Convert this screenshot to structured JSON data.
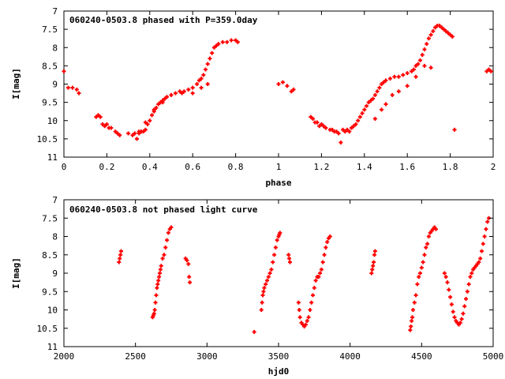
{
  "chart_data": [
    {
      "type": "scatter",
      "title": "060240-0503.8 phased with P=359.0day",
      "xlabel": "phase",
      "ylabel": "I[mag]",
      "xlim": [
        0,
        2
      ],
      "ylim": [
        11,
        7
      ],
      "y_inverted": true,
      "xticks": [
        "0",
        "0.2",
        "0.4",
        "0.6",
        "0.8",
        "1",
        "1.2",
        "1.4",
        "1.6",
        "1.8",
        "2"
      ],
      "yticks": [
        "7",
        "7.5",
        "8",
        "8.5",
        "9",
        "9.5",
        "10",
        "10.5",
        "11"
      ],
      "grid": false,
      "marker_color": "#ff0000",
      "series": [
        {
          "x": [
            0.0,
            0.02,
            0.04,
            0.06,
            0.07,
            0.15,
            0.16,
            0.17,
            0.18,
            0.19,
            0.2,
            0.21,
            0.22,
            0.24,
            0.25,
            0.26,
            0.3,
            0.32,
            0.33,
            0.34,
            0.35,
            0.36,
            0.37,
            0.38,
            0.39,
            0.4,
            0.41,
            0.42,
            0.43,
            0.44,
            0.45,
            0.46,
            0.47,
            0.48,
            0.5,
            0.52,
            0.54,
            0.56,
            0.58,
            0.6,
            0.62,
            0.63,
            0.64,
            0.65,
            0.66,
            0.67,
            0.68,
            0.69,
            0.7,
            0.71,
            0.72,
            0.74,
            0.76,
            0.78,
            0.8,
            0.81,
            0.35,
            0.38,
            0.42,
            0.46,
            0.5,
            0.55,
            0.6,
            0.64,
            0.67,
            1.0,
            1.02,
            1.04,
            1.06,
            1.07,
            1.15,
            1.16,
            1.17,
            1.18,
            1.19,
            1.2,
            1.21,
            1.22,
            1.24,
            1.25,
            1.26,
            1.27,
            1.28,
            1.29,
            1.3,
            1.31,
            1.32,
            1.33,
            1.34,
            1.35,
            1.36,
            1.37,
            1.38,
            1.39,
            1.4,
            1.41,
            1.42,
            1.43,
            1.44,
            1.45,
            1.46,
            1.47,
            1.48,
            1.49,
            1.5,
            1.52,
            1.54,
            1.56,
            1.58,
            1.6,
            1.62,
            1.63,
            1.64,
            1.65,
            1.66,
            1.67,
            1.68,
            1.69,
            1.7,
            1.71,
            1.72,
            1.73,
            1.74,
            1.75,
            1.76,
            1.77,
            1.78,
            1.79,
            1.8,
            1.81,
            1.82,
            1.45,
            1.48,
            1.5,
            1.53,
            1.56,
            1.6,
            1.64,
            1.68,
            1.71,
            1.97,
            1.98,
            1.99
          ],
          "y": [
            8.65,
            9.1,
            9.1,
            9.15,
            9.25,
            9.9,
            9.85,
            9.9,
            10.1,
            10.15,
            10.1,
            10.2,
            10.2,
            10.3,
            10.35,
            10.4,
            10.35,
            10.4,
            10.35,
            10.5,
            10.3,
            10.3,
            10.3,
            10.25,
            10.1,
            10.0,
            9.85,
            9.75,
            9.65,
            9.55,
            9.5,
            9.45,
            9.4,
            9.35,
            9.3,
            9.25,
            9.2,
            9.2,
            9.15,
            9.1,
            9.0,
            8.9,
            8.85,
            8.75,
            8.6,
            8.45,
            8.3,
            8.15,
            8.0,
            7.95,
            7.9,
            7.85,
            7.85,
            7.8,
            7.8,
            7.85,
            10.35,
            10.05,
            9.7,
            9.5,
            9.3,
            9.25,
            9.25,
            9.1,
            9.0,
            9.0,
            8.95,
            9.05,
            9.2,
            9.15,
            9.9,
            9.95,
            10.05,
            10.05,
            10.15,
            10.1,
            10.15,
            10.2,
            10.25,
            10.25,
            10.3,
            10.3,
            10.35,
            10.6,
            10.25,
            10.3,
            10.25,
            10.3,
            10.2,
            10.15,
            10.1,
            10.0,
            9.9,
            9.8,
            9.7,
            9.6,
            9.5,
            9.45,
            9.4,
            9.3,
            9.2,
            9.1,
            9.0,
            8.95,
            8.9,
            8.85,
            8.8,
            8.8,
            8.75,
            8.7,
            8.65,
            8.6,
            8.5,
            8.45,
            8.35,
            8.2,
            8.05,
            7.9,
            7.75,
            7.65,
            7.55,
            7.45,
            7.4,
            7.4,
            7.45,
            7.5,
            7.55,
            7.6,
            7.65,
            7.7,
            10.25,
            9.95,
            9.7,
            9.55,
            9.3,
            9.2,
            9.05,
            8.8,
            8.5,
            8.55,
            8.65,
            8.6,
            8.65
          ]
        }
      ]
    },
    {
      "type": "scatter",
      "title": "060240-0503.8 not phased light curve",
      "xlabel": "hjd0",
      "ylabel": "I[mag]",
      "xlim": [
        2000,
        5000
      ],
      "ylim": [
        11,
        7
      ],
      "y_inverted": true,
      "xticks": [
        "2000",
        "2500",
        "3000",
        "3500",
        "4000",
        "4500",
        "5000"
      ],
      "yticks": [
        "7",
        "7.5",
        "8",
        "8.5",
        "9",
        "9.5",
        "10",
        "10.5",
        "11"
      ],
      "grid": false,
      "marker_color": "#ff0000",
      "series": [
        {
          "x": [
            2385,
            2390,
            2395,
            2400,
            2620,
            2625,
            2630,
            2635,
            2640,
            2645,
            2650,
            2655,
            2660,
            2665,
            2670,
            2675,
            2680,
            2690,
            2700,
            2710,
            2720,
            2730,
            2740,
            2750,
            2850,
            2860,
            2870,
            2875,
            2880,
            3330,
            3380,
            3385,
            3390,
            3395,
            3400,
            3410,
            3420,
            3430,
            3440,
            3450,
            3460,
            3470,
            3480,
            3490,
            3500,
            3505,
            3510,
            3570,
            3575,
            3580,
            3640,
            3645,
            3650,
            3660,
            3670,
            3680,
            3690,
            3700,
            3710,
            3720,
            3730,
            3740,
            3750,
            3760,
            3770,
            3780,
            3790,
            3800,
            3810,
            3820,
            3830,
            3840,
            3850,
            3860,
            4150,
            4155,
            4160,
            4165,
            4170,
            4175,
            4420,
            4425,
            4430,
            4435,
            4440,
            4450,
            4460,
            4470,
            4480,
            4490,
            4500,
            4510,
            4520,
            4530,
            4540,
            4550,
            4560,
            4570,
            4580,
            4590,
            4600,
            4660,
            4670,
            4680,
            4690,
            4700,
            4710,
            4720,
            4730,
            4740,
            4750,
            4760,
            4770,
            4780,
            4790,
            4800,
            4810,
            4820,
            4830,
            4840,
            4850,
            4860,
            4870,
            4880,
            4890,
            4900,
            4910,
            4920,
            4930,
            4940,
            4950,
            4960,
            4970
          ],
          "y": [
            8.7,
            8.6,
            8.5,
            8.4,
            10.2,
            10.15,
            10.1,
            10.0,
            9.8,
            9.6,
            9.4,
            9.3,
            9.2,
            9.1,
            9.0,
            8.9,
            8.8,
            8.6,
            8.5,
            8.3,
            8.1,
            7.9,
            7.8,
            7.75,
            8.6,
            8.65,
            8.75,
            9.1,
            9.25,
            10.6,
            10.0,
            9.8,
            9.6,
            9.5,
            9.4,
            9.3,
            9.2,
            9.1,
            9.0,
            8.9,
            8.7,
            8.5,
            8.3,
            8.1,
            8.0,
            7.95,
            7.9,
            8.5,
            8.6,
            8.7,
            9.8,
            10.0,
            10.2,
            10.35,
            10.4,
            10.45,
            10.4,
            10.3,
            10.2,
            10.0,
            9.8,
            9.6,
            9.4,
            9.2,
            9.1,
            9.1,
            9.0,
            8.9,
            8.7,
            8.5,
            8.3,
            8.15,
            8.05,
            8.0,
            9.0,
            8.9,
            8.8,
            8.7,
            8.5,
            8.4,
            10.55,
            10.45,
            10.3,
            10.2,
            10.0,
            9.8,
            9.6,
            9.3,
            9.1,
            9.0,
            8.85,
            8.7,
            8.5,
            8.3,
            8.2,
            8.0,
            7.9,
            7.85,
            7.8,
            7.75,
            7.8,
            9.0,
            9.1,
            9.25,
            9.45,
            9.65,
            9.85,
            10.05,
            10.2,
            10.3,
            10.35,
            10.4,
            10.35,
            10.25,
            10.1,
            9.9,
            9.7,
            9.5,
            9.3,
            9.1,
            9.0,
            8.9,
            8.85,
            8.8,
            8.75,
            8.7,
            8.6,
            8.4,
            8.2,
            8.0,
            7.8,
            7.6,
            7.5
          ]
        }
      ]
    }
  ]
}
